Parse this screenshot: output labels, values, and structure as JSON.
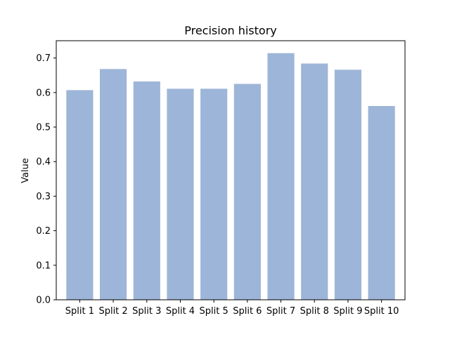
{
  "chart_data": {
    "type": "bar",
    "title": "Precision history",
    "xlabel": "",
    "ylabel": "Value",
    "categories": [
      "Split 1",
      "Split 2",
      "Split 3",
      "Split 4",
      "Split 5",
      "Split 6",
      "Split 7",
      "Split 8",
      "Split 9",
      "Split 10"
    ],
    "values": [
      0.607,
      0.668,
      0.632,
      0.611,
      0.611,
      0.625,
      0.714,
      0.684,
      0.666,
      0.561
    ],
    "ylim": [
      0,
      0.75
    ],
    "yticks": [
      "0.0",
      "0.1",
      "0.2",
      "0.3",
      "0.4",
      "0.5",
      "0.6",
      "0.7"
    ],
    "bar_color": "#9db5d8",
    "grid": false,
    "legend": "none"
  }
}
